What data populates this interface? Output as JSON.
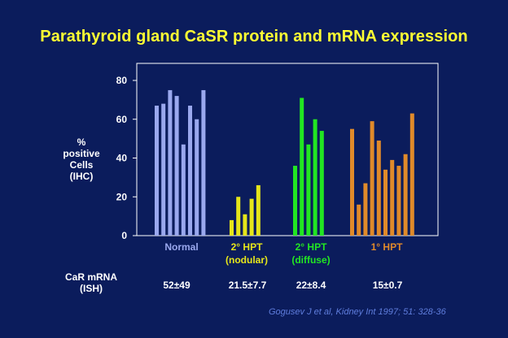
{
  "slide": {
    "title": "Parathyroid gland CaSR protein and mRNA expression",
    "citation": "Gogusev J et al, Kidney Int 1997; 51: 328-36"
  },
  "ylabel_lines": [
    "%",
    "positive",
    "Cells",
    "(IHC)"
  ],
  "mrna": {
    "label_lines": [
      "CaR mRNA",
      "(ISH)"
    ],
    "values": [
      "52±49",
      "21.5±7.7",
      "22±8.4",
      "15±0.7"
    ]
  },
  "chart_data": {
    "type": "bar",
    "title": "Parathyroid gland CaSR protein and mRNA expression",
    "ylabel": "% positive Cells (IHC)",
    "ylim": [
      0,
      80
    ],
    "yticks": [
      0,
      20,
      40,
      60,
      80
    ],
    "grid": false,
    "groups": [
      {
        "name": "Normal",
        "label_lines": [
          "Normal"
        ],
        "color": "#9aa8ee",
        "values": [
          67,
          68,
          75,
          72,
          47,
          67,
          60,
          75
        ]
      },
      {
        "name": "2° HPT (nodular)",
        "label_lines": [
          "2° HPT",
          "(nodular)"
        ],
        "color": "#e6e61a",
        "values": [
          8,
          20,
          11,
          19,
          26
        ]
      },
      {
        "name": "2° HPT (diffuse)",
        "label_lines": [
          "2° HPT",
          "(diffuse)"
        ],
        "color": "#22e622",
        "values": [
          36,
          71,
          47,
          60,
          54
        ]
      },
      {
        "name": "1° HPT",
        "label_lines": [
          "1° HPT"
        ],
        "color": "#e08a2a",
        "values": [
          55,
          16,
          27,
          59,
          49,
          34,
          39,
          36,
          42,
          63
        ]
      }
    ]
  }
}
